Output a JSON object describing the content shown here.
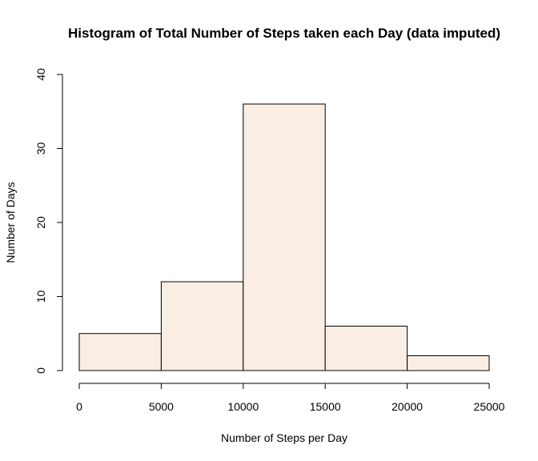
{
  "chart_data": {
    "type": "bar",
    "title": "Histogram of Total Number of Steps taken each Day (data imputed)",
    "xlabel": "Number of Steps per Day",
    "ylabel": "Number of Days",
    "bins": [
      {
        "from": 0,
        "to": 5000,
        "count": 5
      },
      {
        "from": 5000,
        "to": 10000,
        "count": 12
      },
      {
        "from": 10000,
        "to": 15000,
        "count": 36
      },
      {
        "from": 15000,
        "to": 20000,
        "count": 6
      },
      {
        "from": 20000,
        "to": 25000,
        "count": 2
      }
    ],
    "xlim": [
      0,
      25000
    ],
    "ylim": [
      0,
      40
    ],
    "x_ticks": [
      0,
      5000,
      10000,
      15000,
      20000,
      25000
    ],
    "y_ticks": [
      0,
      10,
      20,
      30,
      40
    ],
    "grid": false,
    "legend": "none",
    "colors": {
      "bar_fill": "#FAEEE4",
      "bar_stroke": "#000000"
    }
  }
}
